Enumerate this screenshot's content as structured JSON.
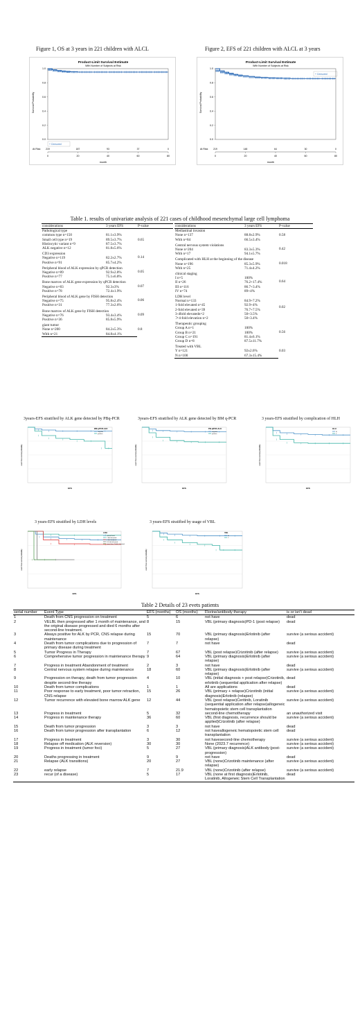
{
  "figure1": {
    "caption": "Figure 1, OS at 3 years in 221 children with ALCL",
    "title": "Product-Limit Survival Estimate",
    "subtitle": "With Number of Subjects at Risk",
    "ylabel": "Survival Probability",
    "xlabel": "month",
    "legend": "+ Censored",
    "at_risk_label": "At Risk",
    "at_risk": [
      "219",
      "187",
      "93",
      "37",
      "0"
    ],
    "chart_data": {
      "type": "line",
      "x": [
        0,
        3,
        6,
        9,
        12,
        15,
        20,
        30,
        40,
        50,
        60,
        70,
        80
      ],
      "y": [
        1.0,
        0.985,
        0.975,
        0.965,
        0.96,
        0.955,
        0.952,
        0.952,
        0.952,
        0.952,
        0.952,
        0.952,
        0.952
      ],
      "xticks": [
        "0",
        "20",
        "40",
        "60",
        "80"
      ],
      "yticks": [
        "0.0",
        "0.2",
        "0.4",
        "0.6",
        "0.8",
        "1.0"
      ],
      "xlim": [
        0,
        80
      ],
      "ylim": [
        0,
        1
      ]
    }
  },
  "figure2": {
    "caption": "Figure 2, EFS of 221 children with ALCL at 3 years",
    "title": "Product-Limit Survival Estimate",
    "subtitle": "With Number of Subjects at Risk",
    "ylabel": "Survival Probability",
    "xlabel": "month",
    "legend": "+ Censored",
    "at_risk_label": "At Risk",
    "at_risk": [
      "219",
      "148",
      "64",
      "30",
      "0"
    ],
    "chart_data": {
      "type": "line",
      "x": [
        0,
        3,
        6,
        9,
        12,
        15,
        18,
        22,
        26,
        30,
        35,
        40,
        45,
        50,
        60,
        70,
        80
      ],
      "y": [
        1.0,
        0.97,
        0.95,
        0.935,
        0.92,
        0.91,
        0.9,
        0.89,
        0.88,
        0.875,
        0.87,
        0.865,
        0.865,
        0.86,
        0.86,
        0.86,
        0.86
      ],
      "xticks": [
        "0",
        "20",
        "40",
        "60",
        "80"
      ],
      "yticks": [
        "0.0",
        "0.2",
        "0.4",
        "0.6",
        "0.8",
        "1.0"
      ],
      "xlim": [
        0,
        80
      ],
      "ylim": [
        0,
        1
      ]
    }
  },
  "table1": {
    "title": "Table 1. results of univariate analysis of 221 cases of childhood mesenchymal large cell lymphoma",
    "headers": [
      "considerations",
      "3 years EFS",
      "P-value"
    ],
    "left": [
      {
        "head": "Pathological type",
        "rows": [
          [
            "common type n=150",
            "81.1±3.9%"
          ],
          [
            "Small cell type n=19",
            "89.5±3.7%"
          ],
          [
            "Histiocytic variant n=9",
            "87.5±3.7%"
          ],
          [
            "ALK negative n=12",
            "81.8±5.6%"
          ]
        ],
        "p": "0.65"
      },
      {
        "head": "CD3 expression",
        "rows": [
          [
            "Negative n=119",
            "82.2±2.7%"
          ],
          [
            "Positive n=91",
            "85.7±4.2%"
          ]
        ],
        "p": "0.14"
      },
      {
        "head": "Peripheral blood of ALK expression by qPCR detection",
        "rows": [
          [
            "Negative n=89",
            "92.9±2.8%"
          ],
          [
            "Positive n=77",
            "75.1±6.8%"
          ]
        ],
        "p": "0.05"
      },
      {
        "head": "Bone marrow of ALK gene expression by qPCR detection",
        "rows": [
          [
            "Negative n=83",
            "92.3±3%"
          ],
          [
            "Positive n=78",
            "72.4±1.9%"
          ]
        ],
        "p": "0.07"
      },
      {
        "head": "Peripheral blood of ALK gene by FISH detection",
        "rows": [
          [
            "Negative n=75",
            "95.8±2.4%"
          ],
          [
            "Positive n=31",
            "77.3±2.6%"
          ]
        ],
        "p": "0.06"
      },
      {
        "head": "Bone marrow of ALK gene by FISH detection",
        "rows": [
          [
            "Negative n=76",
            "93.4±3.4%"
          ],
          [
            "Positive n=36",
            "85.8±5.9%"
          ]
        ],
        "p": "0.09"
      },
      {
        "head": "giant tumor",
        "rows": [
          [
            "None n=200",
            "84.2±5.3%"
          ],
          [
            "With n=21",
            "84.8±4.1%"
          ]
        ],
        "p": "0.8"
      }
    ],
    "right": [
      {
        "head": "Mediastinal invasion",
        "rows": [
          [
            "None n=137",
            "88.8±2.9%"
          ],
          [
            "With n=84",
            "66.5±3.4%"
          ]
        ],
        "p": "0.58"
      },
      {
        "head": "Central nervous system violations",
        "rows": [
          [
            "None n=204",
            "83.3±5.3%"
          ],
          [
            "With n=17",
            "94.1±5.7%"
          ]
        ],
        "p": "0.42"
      },
      {
        "head": "Complicated with HLH at the beginning of the disease",
        "rows": [
          [
            "None n=196",
            "85.3±5.9%"
          ],
          [
            "With n=25",
            "71.4±4.2%"
          ]
        ],
        "p": "0.018"
      },
      {
        "head": "clinical staging",
        "rows": [
          [
            "I n=5",
            "100%"
          ],
          [
            "II n=26",
            "76.2+17.4%"
          ],
          [
            "III n=116",
            "86.7+3.4%"
          ],
          [
            "IV n=74",
            "89+4%"
          ]
        ],
        "p": "0.64"
      },
      {
        "head": "LDH level",
        "rows": [
          [
            "Normal n=133",
            "84.9+7.2%"
          ],
          [
            "1-fold elevated n=45",
            "92.9+4%"
          ],
          [
            "2-fold elevated n=39",
            "76.7+7.5%"
          ],
          [
            "3-4fold elevatedn=2",
            "50+3.5%"
          ],
          [
            "＞4-fold elevation n=2",
            "50+3.4%"
          ]
        ],
        "p": "0.02"
      },
      {
        "head": "Therapeutic grouping",
        "rows": [
          [
            "Group A n=1",
            "100%"
          ],
          [
            "Group B n=21",
            "100%"
          ],
          [
            "Group C n=191",
            "81.4±6.1%"
          ],
          [
            "Group D n=8",
            "87.5±11.7%"
          ]
        ],
        "p": "0.56"
      },
      {
        "head": "Treated with VBL",
        "rows": [
          [
            "Y n=121",
            "92±2.6%"
          ],
          [
            "N n=100",
            "67.3±15.4%"
          ]
        ],
        "p": "0.03"
      }
    ]
  },
  "small_figs": [
    {
      "caption": "3years-EFS stratified by ALK gene detected by PBq-PCR",
      "legend_title": "BM-qPCR-ALK",
      "legend": [
        "negative",
        "positive"
      ],
      "ylabel": "event free survival probability",
      "xlabel": "EFS",
      "chart_data": {
        "type": "line",
        "series": [
          {
            "name": "negative",
            "x": [
              0,
              5,
              10,
              20,
              30,
              40,
              50,
              60
            ],
            "y": [
              1.0,
              0.97,
              0.95,
              0.93,
              0.93,
              0.93,
              0.93,
              0.93
            ]
          },
          {
            "name": "positive",
            "x": [
              0,
              5,
              10,
              20,
              30,
              40,
              50,
              55,
              60
            ],
            "y": [
              1.0,
              0.93,
              0.85,
              0.8,
              0.78,
              0.75,
              0.75,
              0.62,
              0.62
            ]
          }
        ],
        "ylim": [
          0,
          1
        ],
        "xlim": [
          0,
          60
        ]
      }
    },
    {
      "caption": "3years-EFS stratified by ALK gene detected by BM q-PCR",
      "legend_title": "PB-qPCR-ALK",
      "legend": [
        "negative",
        "positive"
      ],
      "ylabel": "event free survival probability",
      "xlabel": "EFS",
      "chart_data": {
        "type": "line",
        "series": [
          {
            "name": "negative",
            "x": [
              0,
              5,
              10,
              20,
              30,
              40,
              50,
              60
            ],
            "y": [
              1.0,
              0.97,
              0.94,
              0.93,
              0.92,
              0.92,
              0.92,
              0.92
            ]
          },
          {
            "name": "positive",
            "x": [
              0,
              5,
              10,
              20,
              30,
              40,
              50,
              60
            ],
            "y": [
              1.0,
              0.9,
              0.82,
              0.76,
              0.74,
              0.73,
              0.73,
              0.73
            ]
          }
        ],
        "ylim": [
          0,
          1
        ],
        "xlim": [
          0,
          60
        ]
      }
    },
    {
      "caption": "3 years-EFS stratified by complication of HLH",
      "legend_title": "HLH",
      "legend": [
        "N",
        "Y"
      ],
      "ylabel": "event free survival probability",
      "xlabel": "EFS",
      "chart_data": {
        "type": "line",
        "series": [
          {
            "name": "N",
            "x": [
              0,
              5,
              10,
              20,
              30,
              40,
              50,
              60
            ],
            "y": [
              1.0,
              0.94,
              0.9,
              0.88,
              0.87,
              0.86,
              0.86,
              0.86
            ]
          },
          {
            "name": "Y",
            "x": [
              0,
              5,
              10,
              20,
              30,
              40,
              50,
              60
            ],
            "y": [
              1.0,
              0.85,
              0.78,
              0.72,
              0.71,
              0.71,
              0.71,
              0.71
            ]
          }
        ],
        "ylim": [
          0,
          1
        ],
        "xlim": [
          0,
          60
        ]
      }
    },
    {
      "caption": "3 years-EFS stratified by LDH levels",
      "legend_title": "LDH",
      "legend": [
        "normal level",
        "1 fold elevated",
        "2 fold elevated",
        "3-4 fold elevated",
        "more than 4 folds elevated"
      ],
      "ylabel": "event free survival probability",
      "xlabel": "EFS",
      "chart_data": {
        "type": "line",
        "series": [
          {
            "name": "normal level",
            "x": [
              0,
              5,
              10,
              20,
              30,
              40,
              50,
              60
            ],
            "y": [
              1.0,
              0.95,
              0.9,
              0.87,
              0.86,
              0.85,
              0.85,
              0.85
            ]
          },
          {
            "name": "1 fold elevated",
            "x": [
              0,
              10,
              20,
              40,
              60
            ],
            "y": [
              1.0,
              0.95,
              0.93,
              0.93,
              0.93
            ]
          },
          {
            "name": "2 fold elevated",
            "x": [
              0,
              10,
              20,
              40,
              60
            ],
            "y": [
              1.0,
              0.85,
              0.78,
              0.77,
              0.77
            ]
          },
          {
            "name": "3-4 fold elevated",
            "x": [
              0,
              3,
              6,
              30
            ],
            "y": [
              1.0,
              1.0,
              0.5,
              0.5
            ]
          },
          {
            "name": "more than 4 folds elevated",
            "x": [
              0,
              2,
              4,
              18
            ],
            "y": [
              1.0,
              1.0,
              0.5,
              0.5
            ]
          }
        ],
        "ylim": [
          0,
          1
        ],
        "xlim": [
          0,
          60
        ]
      }
    },
    {
      "caption": "3 years-EFS stratified by usage of  VBL",
      "legend_title": "VBL",
      "legend": [
        "N",
        "Y"
      ],
      "ylabel": "event free survival probability",
      "xlabel": "EFS",
      "chart_data": {
        "type": "line",
        "series": [
          {
            "name": "Y",
            "x": [
              0,
              5,
              10,
              20,
              30,
              40,
              50,
              60
            ],
            "y": [
              1.0,
              0.97,
              0.95,
              0.93,
              0.92,
              0.92,
              0.92,
              0.92
            ]
          },
          {
            "name": "N",
            "x": [
              0,
              5,
              10,
              20,
              30,
              40,
              45,
              50,
              60
            ],
            "y": [
              1.0,
              0.9,
              0.85,
              0.8,
              0.77,
              0.75,
              0.67,
              0.67,
              0.67
            ]
          }
        ],
        "ylim": [
          0,
          1
        ],
        "xlim": [
          0,
          60
        ]
      }
    }
  ],
  "table2": {
    "title": "Table 2 Details of 23 evets patients",
    "headers": [
      "serial number",
      "Event Type",
      "EFS (months)",
      "OS (months)",
      "Florine/antibody therapy",
      "is or isn't dead"
    ],
    "rows": [
      [
        "1",
        "Death from CNS progression on treatment",
        "5",
        "6",
        "not have",
        "dead"
      ],
      [
        "2",
        "VELBL then progressed after 1 month of maintenance, and the original disease progressed and died 6 months after second-line treatment.",
        "8",
        "15",
        "VBL (primary diagnosis)PD-1 (post relapse)",
        "dead"
      ],
      [
        "3",
        "Always positive for ALK by PCR, CNS relapse during maintenance",
        "15",
        "70",
        "VBL (primary diagnosis)Erlotinib (after relapse)",
        "survive (a serious accident)"
      ],
      [
        "4",
        "Death from tumor complications due to progression of primary disease during treatment",
        "7",
        "7",
        "not have",
        "dead"
      ],
      [
        "5",
        "Tumor Progress in Therapy",
        "7",
        "67",
        "VBL (post relapse)Crizotinib (after relapse)",
        "survive (a serious accident)"
      ],
      [
        "6",
        "Comprehensive tumor progression in maintenance therapy",
        "9",
        "64",
        "VBL (primary diagnosis)Erlotinib (after relapse)",
        "survive (a serious accident)"
      ],
      [
        "7",
        "Progress in treatment Abandonment of treatment",
        "2",
        "3",
        "not have",
        "dead"
      ],
      [
        "8",
        "Central nervous system relapse during maintenance",
        "18",
        "60",
        "VBL (primary diagnosis)Erlotinib (after relapse)",
        "survive (a serious accident)"
      ],
      [
        "9",
        "Progression on therapy, death from tumor progression despite second-line therapy",
        "4",
        "10",
        "VBL (initial diagnosis + post relapse)Crizotinib, erlotinib (sequential application after relapse)",
        "dead"
      ],
      [
        "10",
        "Death from tumor complications",
        "1",
        "1",
        "All are applications",
        "dead"
      ],
      [
        "11",
        "Poor response to early treatment, poor tumor retraction, CNS relapse",
        "15",
        "26",
        "VBL (primary + relapse)Crizotinib (initial diagnosis)Erlotinib (relapse)",
        "survive (a serious accident)"
      ],
      [
        "12",
        "Tumor recurrence with elevated bone marrow ALK gene",
        "12",
        "44",
        "VBL (post relapse)Ceritinib, Loratinib (sequential application after relapse)allogeneic hematopoietic stem cell transplantation",
        "survive (a serious accident)"
      ],
      [
        "13",
        "Progress in treatment",
        "5",
        "32",
        "second-line chemotherapy",
        "an unauthorized visit"
      ],
      [
        "14",
        "Progress in maintenance therapy",
        "36",
        "60",
        "VBL (first diagnosis, recurrence should be applied)Crizotinib (after relapse)",
        "survive (a serious accident)"
      ],
      [
        "15",
        "Death from tumor progression",
        "3",
        "3",
        "not have",
        "dead"
      ],
      [
        "16",
        "Death from tumor progression after transplantation",
        "6",
        "12",
        "not haveallogeneic hematopoietic stem cell transplantation",
        "dead"
      ],
      [
        "17",
        "Progress in treatment",
        "3",
        "30",
        "not havesecond-line chemotherapy",
        "survive (a serious accident)"
      ],
      [
        "18",
        "Relapse off medication (ALK reversion)",
        "30",
        "30",
        "None (2023.7 recurrence)",
        "survive (a serious accident)"
      ],
      [
        "19",
        "Progress in treatment (tumor foci)",
        "5",
        "27",
        "VBL (primary diagnosis)ALK antibody (post-progression)",
        "survive (a serious accident)"
      ],
      [
        "20",
        "Deaths progressing in treatment",
        "9",
        "9",
        "not have",
        "dead"
      ],
      [
        "21",
        "Relapse (ALK transitions)",
        "20",
        "27",
        "VBL (none)Crizotinib maintenance (after relapse)",
        "survive (a serious accident)"
      ],
      [
        "22",
        "early relapse",
        "7",
        "21.9",
        "VBL (none)Crizotinib (after relapse)",
        "survive (a serious accident)"
      ],
      [
        "23",
        "recur (of a disease)",
        "5",
        "17",
        "VBL (none at first diagnosis)Erlotinib, Loratinib, Allogeneic Stem Cell Transplantation",
        "dead"
      ]
    ]
  },
  "colors": {
    "km_line": "#1f5fae",
    "censor": "#2b6cb8",
    "group_a": "#4a90c8",
    "group_b": "#3db3a6",
    "ldh3": "#e04040",
    "ldh4": "#7a7a7a",
    "ldh5": "#5aa05a"
  }
}
